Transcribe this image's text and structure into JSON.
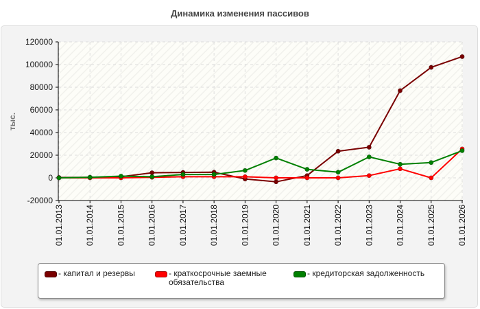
{
  "chart_data": {
    "type": "line",
    "title": "Динамика изменения пассивов",
    "ylabel": "тыс.",
    "xlabel": "",
    "categories": [
      "01.01.2013",
      "01.01.2014",
      "01.01.2015",
      "01.01.2016",
      "01.01.2017",
      "01.01.2018",
      "01.01.2019",
      "01.01.2020",
      "01.01.2021",
      "01.01.2022",
      "01.01.2023",
      "01.01.2024",
      "01.01.2025",
      "01.01.2026"
    ],
    "ylim": [
      -20000,
      120000
    ],
    "yticks": [
      -20000,
      0,
      20000,
      40000,
      60000,
      80000,
      100000,
      120000
    ],
    "grid": true,
    "legend_position": "bottom",
    "series": [
      {
        "name": "капитал и резервы",
        "color": "#7a0000",
        "values": [
          300,
          500,
          1000,
          4500,
          4800,
          5000,
          -1000,
          -3500,
          2000,
          23500,
          27000,
          77000,
          97500,
          107000
        ]
      },
      {
        "name": "краткосрочные заемные обязательства",
        "color": "#ff0000",
        "values": [
          0,
          0,
          0,
          500,
          1000,
          1000,
          1000,
          0,
          0,
          0,
          2000,
          8000,
          0,
          25500
        ]
      },
      {
        "name": "кредиторская задолженность",
        "color": "#008000",
        "values": [
          0,
          500,
          1500,
          1000,
          3000,
          3000,
          6500,
          17500,
          7500,
          5000,
          18500,
          12000,
          13500,
          24000
        ]
      }
    ]
  },
  "legend": {
    "items": [
      {
        "label": "- капитал и резервы",
        "color": "#7a0000"
      },
      {
        "label": "- краткосрочные заемные\nобязательства",
        "color": "#ff0000"
      },
      {
        "label": "- кредиторская задолженность",
        "color": "#008000"
      }
    ]
  }
}
